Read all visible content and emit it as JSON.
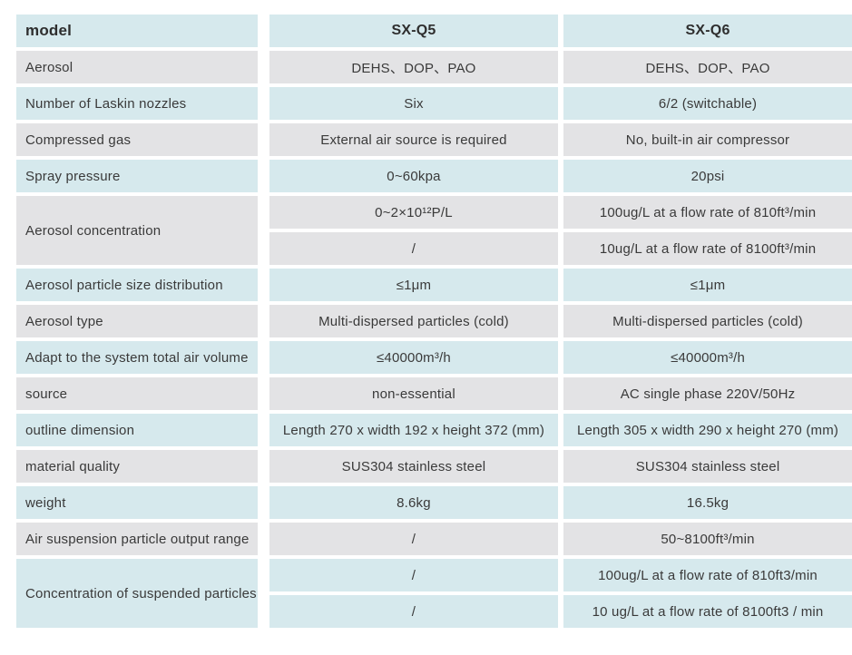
{
  "colors": {
    "row_teal": "#d6e9ed",
    "row_gray": "#e3e3e5",
    "gap_white": "#ffffff",
    "text": "#3a3a3a",
    "header_text": "#2e2e2e",
    "background": "#ffffff"
  },
  "table": {
    "header": {
      "label": "model",
      "q5": "SX-Q5",
      "q6": "SX-Q6"
    },
    "rows": [
      {
        "label": "Aerosol",
        "cells": [
          {
            "q5": "DEHS、DOP、PAO",
            "q6": "DEHS、DOP、PAO"
          }
        ]
      },
      {
        "label": "Number of Laskin nozzles",
        "cells": [
          {
            "q5": "Six",
            "q6": "6/2 (switchable)"
          }
        ]
      },
      {
        "label": "Compressed gas",
        "cells": [
          {
            "q5": "External air source is required",
            "q6": "No, built-in air compressor"
          }
        ]
      },
      {
        "label": "Spray pressure",
        "cells": [
          {
            "q5": "0~60kpa",
            "q6": "20psi"
          }
        ]
      },
      {
        "label": "Aerosol concentration",
        "cells": [
          {
            "q5": "0~2×10¹²P/L",
            "q6": "100ug/L at a flow rate of 810ft³/min"
          },
          {
            "q5": "/",
            "q6": "10ug/L at a flow rate of 8100ft³/min"
          }
        ]
      },
      {
        "label": "Aerosol particle size distribution",
        "cells": [
          {
            "q5": "≤1μm",
            "q6": "≤1μm"
          }
        ]
      },
      {
        "label": "Aerosol type",
        "cells": [
          {
            "q5": "Multi-dispersed particles (cold)",
            "q6": "Multi-dispersed particles (cold)"
          }
        ]
      },
      {
        "label": "Adapt to the system total air volume",
        "cells": [
          {
            "q5": "≤40000m³/h",
            "q6": "≤40000m³/h"
          }
        ]
      },
      {
        "label": "source",
        "cells": [
          {
            "q5": "non-essential",
            "q6": "AC single phase 220V/50Hz"
          }
        ]
      },
      {
        "label": "outline dimension",
        "cells": [
          {
            "q5": "Length 270 x width 192 x height 372 (mm)",
            "q6": "Length 305 x width 290 x height 270 (mm)"
          }
        ]
      },
      {
        "label": "material quality",
        "cells": [
          {
            "q5": "SUS304 stainless steel",
            "q6": "SUS304 stainless steel"
          }
        ]
      },
      {
        "label": "weight",
        "cells": [
          {
            "q5": "8.6kg",
            "q6": "16.5kg"
          }
        ]
      },
      {
        "label": "Air suspension particle output range",
        "cells": [
          {
            "q5": "/",
            "q6": "50~8100ft³/min"
          }
        ]
      },
      {
        "label": "Concentration of suspended particles",
        "cells": [
          {
            "q5": "/",
            "q6": "100ug/L at a flow rate of 810ft3/min"
          },
          {
            "q5": "/",
            "q6": "10 ug/L at a flow rate of 8100ft3 / min"
          }
        ]
      }
    ]
  }
}
